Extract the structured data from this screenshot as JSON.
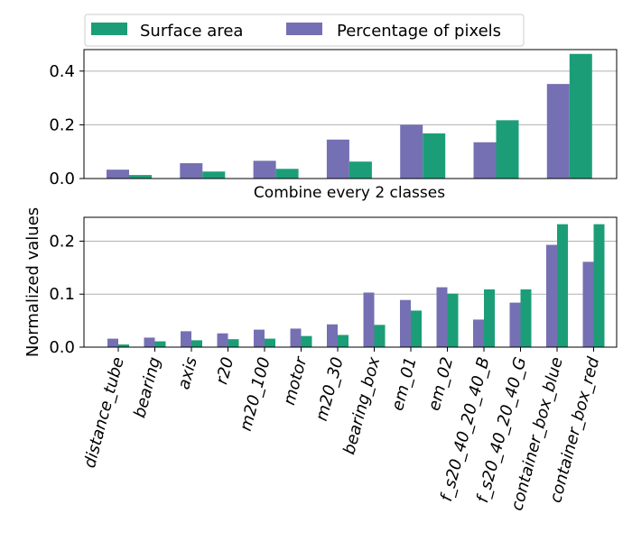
{
  "legend": {
    "placement": "top-left",
    "items": [
      {
        "label": "Surface area",
        "color": "#1b9e77"
      },
      {
        "label": "Percentage of pixels",
        "color": "#7570b3"
      }
    ]
  },
  "chart_data": [
    {
      "type": "bar",
      "title": "",
      "xlabel": "Combine every 2 classes",
      "ylabel": "",
      "categories": [
        "",
        "",
        "",
        "",
        "",
        "",
        ""
      ],
      "ylim": [
        0,
        0.48
      ],
      "yticks": [
        0.0,
        0.2,
        0.4
      ],
      "ytick_labels": [
        "0.0",
        "0.2",
        "0.4"
      ],
      "grid": "y",
      "series": [
        {
          "name": "Percentage of pixels",
          "color": "#7570b3",
          "values": [
            0.033,
            0.057,
            0.066,
            0.145,
            0.2,
            0.135,
            0.352
          ]
        },
        {
          "name": "Surface area",
          "color": "#1b9e77",
          "values": [
            0.013,
            0.026,
            0.036,
            0.063,
            0.168,
            0.217,
            0.464
          ]
        }
      ]
    },
    {
      "type": "bar",
      "title": "",
      "xlabel": "",
      "ylabel": "Normalized values",
      "categories": [
        "distance_tube",
        "bearing",
        "axis",
        "r20",
        "m20_100",
        "motor",
        "m20_30",
        "bearing_box",
        "em_01",
        "em_02",
        "f_s20_40_20_40_B",
        "f_s20_40_20_40_G",
        "container_box_blue",
        "container_box_red"
      ],
      "ylim": [
        0,
        0.245
      ],
      "yticks": [
        0.0,
        0.1,
        0.2
      ],
      "ytick_labels": [
        "0.0",
        "0.1",
        "0.2"
      ],
      "grid": "y",
      "series": [
        {
          "name": "Percentage of pixels",
          "color": "#7570b3",
          "values": [
            0.016,
            0.018,
            0.03,
            0.026,
            0.033,
            0.035,
            0.043,
            0.103,
            0.089,
            0.113,
            0.052,
            0.084,
            0.193,
            0.161
          ]
        },
        {
          "name": "Surface area",
          "color": "#1b9e77",
          "values": [
            0.005,
            0.011,
            0.013,
            0.015,
            0.016,
            0.021,
            0.023,
            0.042,
            0.069,
            0.101,
            0.109,
            0.109,
            0.232,
            0.232
          ]
        }
      ]
    }
  ]
}
